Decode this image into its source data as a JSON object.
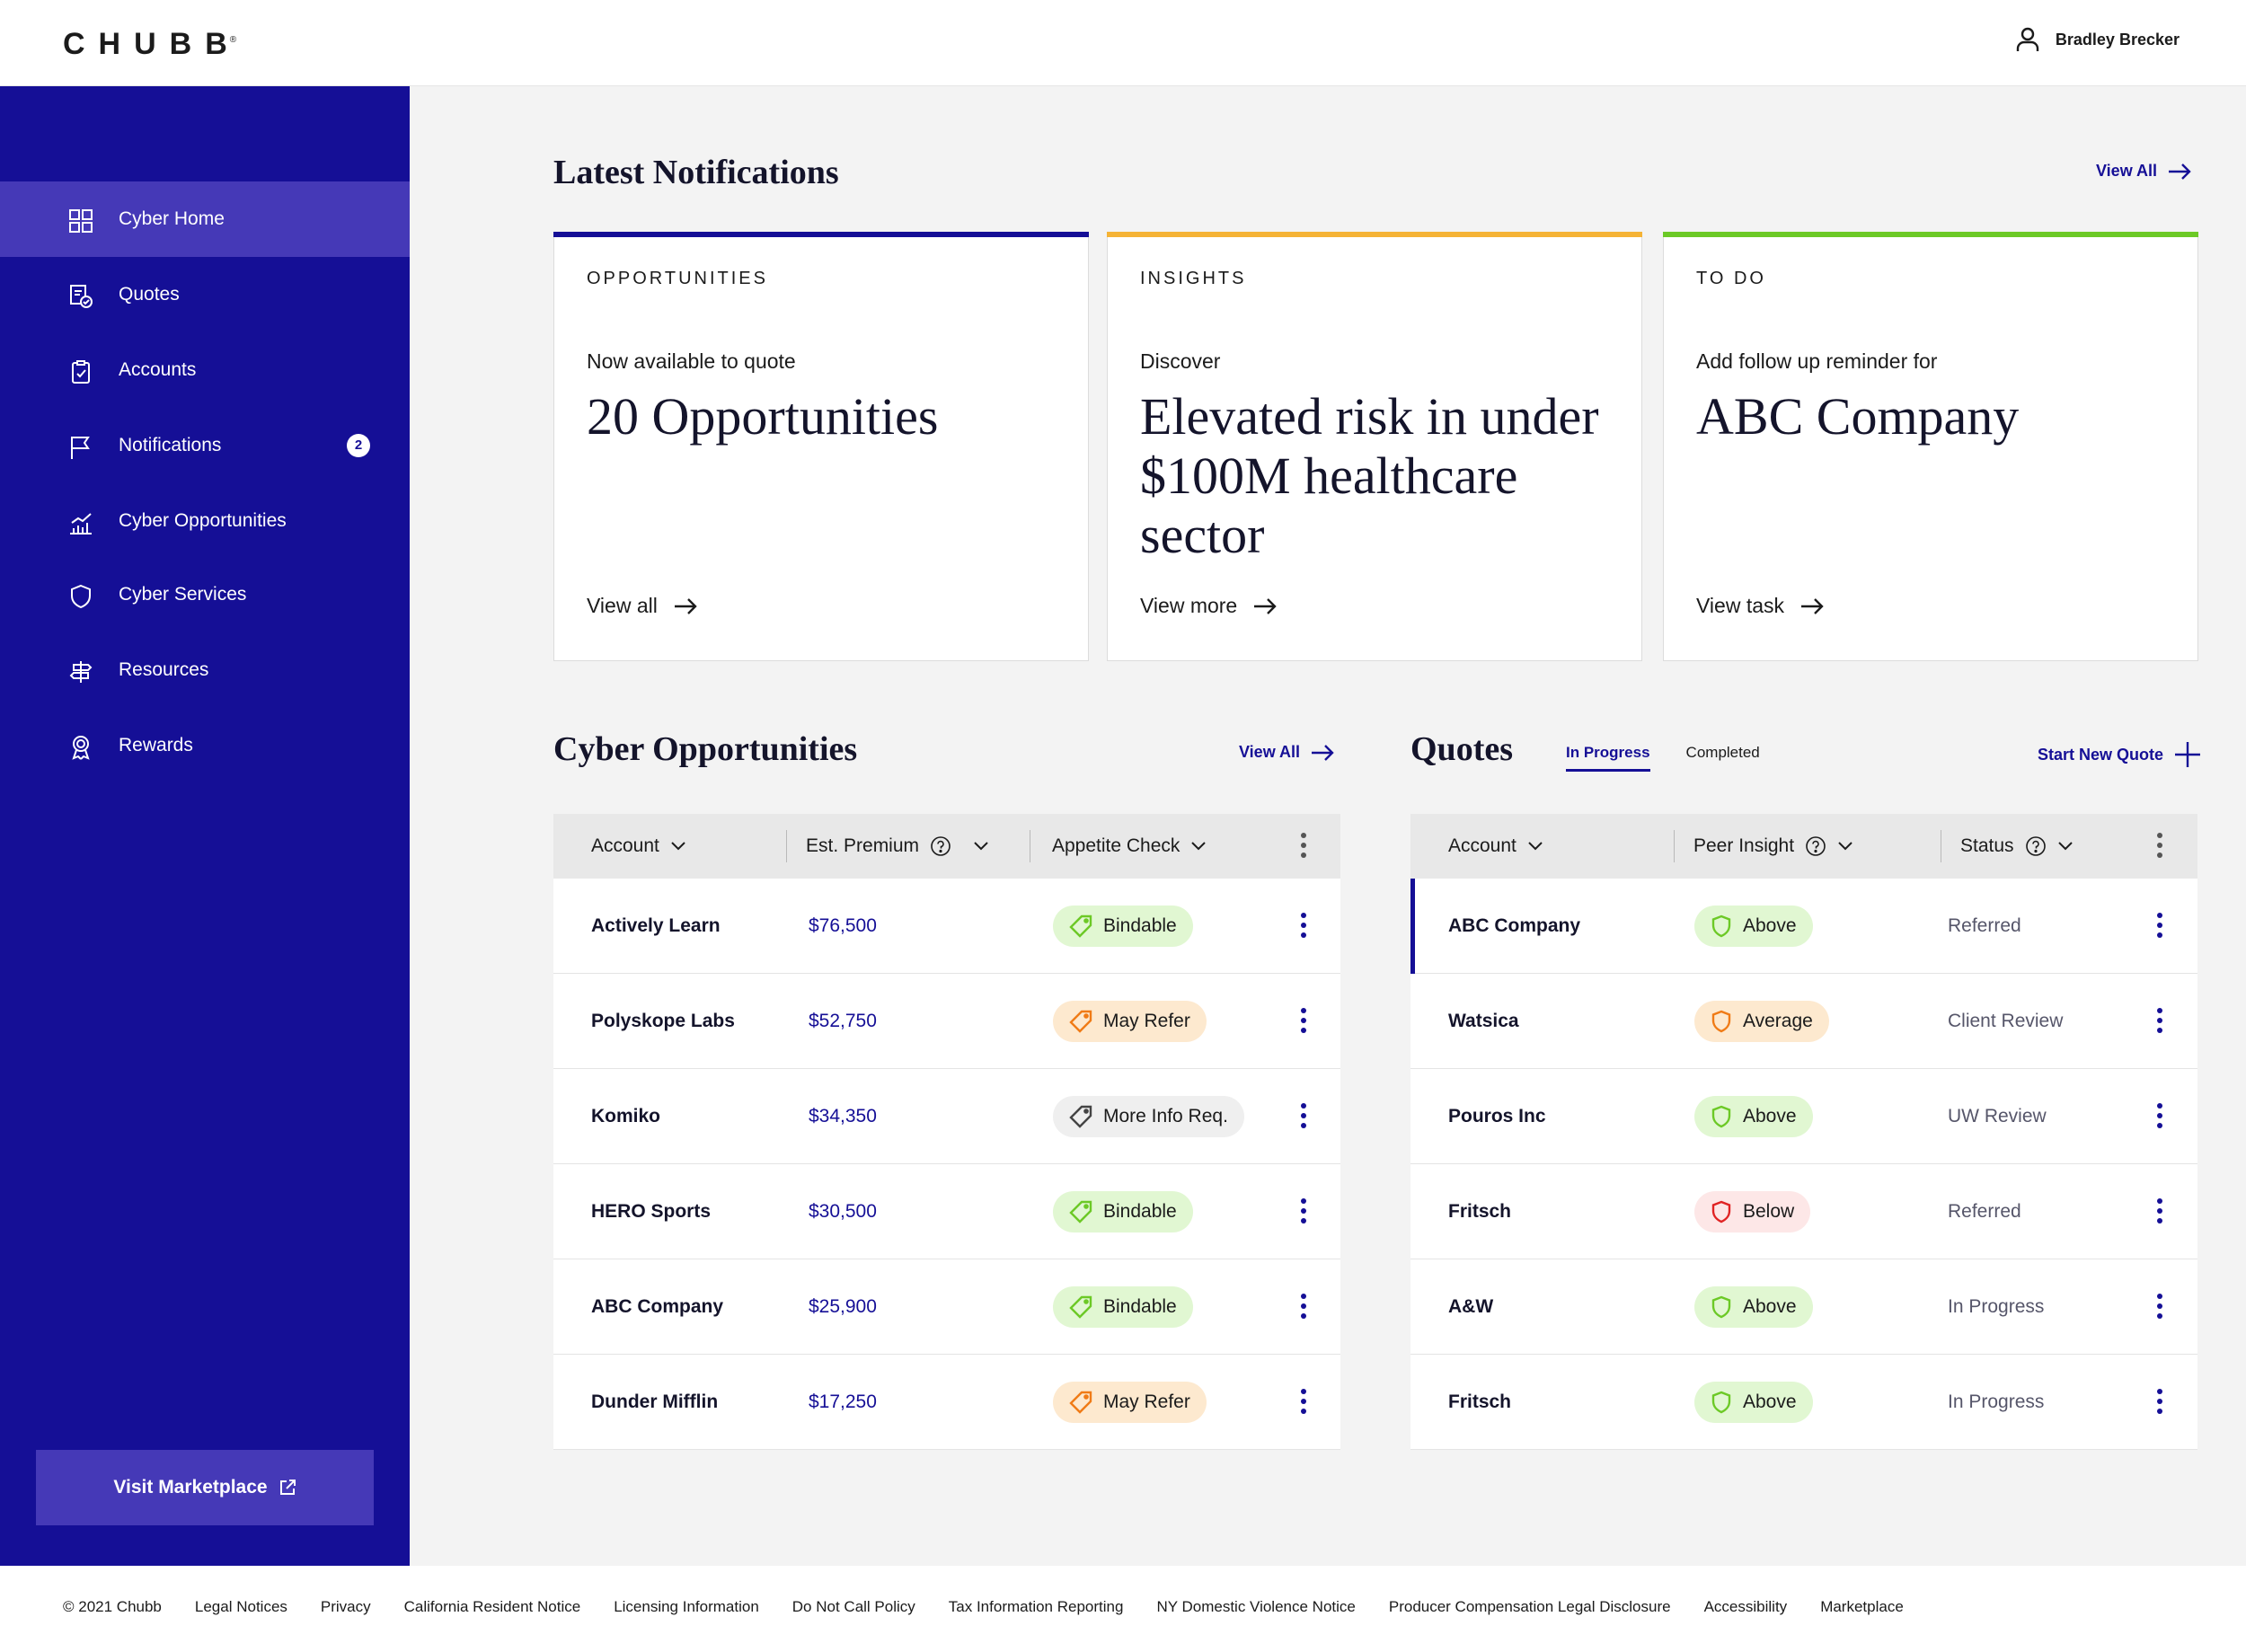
{
  "brand": {
    "logo_text": "CHUBB",
    "logo_mark": "®"
  },
  "user": {
    "name": "Bradley Brecker",
    "icon": "user-icon"
  },
  "sidebar": {
    "items": [
      {
        "label": "Cyber Home",
        "icon": "grid-icon",
        "active": true
      },
      {
        "label": "Quotes",
        "icon": "quote-icon"
      },
      {
        "label": "Accounts",
        "icon": "clipboard-icon"
      },
      {
        "label": "Notifications",
        "icon": "flag-icon",
        "badge": "2"
      },
      {
        "label": "Cyber Opportunities",
        "icon": "chart-icon"
      },
      {
        "label": "Cyber Services",
        "icon": "shield-icon"
      },
      {
        "label": "Resources",
        "icon": "signpost-icon"
      },
      {
        "label": "Rewards",
        "icon": "award-icon"
      }
    ],
    "marketplace_label": "Visit Marketplace"
  },
  "notifications": {
    "title": "Latest Notifications",
    "view_all": "View All",
    "cards": [
      {
        "eyebrow": "OPPORTUNITIES",
        "sub": "Now available to quote",
        "headline": "20 Opportunities",
        "link": "View all",
        "accent": "#150f96"
      },
      {
        "eyebrow": "INSIGHTS",
        "sub": "Discover",
        "headline": "Elevated risk in under $100M healthcare sector",
        "link": "View more",
        "accent": "#f5b335"
      },
      {
        "eyebrow": "TO DO",
        "sub": "Add follow up reminder for",
        "headline": "ABC Company",
        "link": "View task",
        "accent": "#6cc926"
      }
    ]
  },
  "opportunities": {
    "title": "Cyber Opportunities",
    "view_all": "View All",
    "columns": [
      "Account",
      "Est. Premium",
      "Appetite Check"
    ],
    "rows": [
      {
        "account": "Actively Learn",
        "premium": "$76,500",
        "check": "Bindable",
        "tone": "green"
      },
      {
        "account": "Polyskope Labs",
        "premium": "$52,750",
        "check": "May Refer",
        "tone": "orange"
      },
      {
        "account": "Komiko",
        "premium": "$34,350",
        "check": "More Info Req.",
        "tone": "grey"
      },
      {
        "account": "HERO Sports",
        "premium": "$30,500",
        "check": "Bindable",
        "tone": "green"
      },
      {
        "account": "ABC Company",
        "premium": "$25,900",
        "check": "Bindable",
        "tone": "green"
      },
      {
        "account": "Dunder Mifflin",
        "premium": "$17,250",
        "check": "May Refer",
        "tone": "orange"
      }
    ]
  },
  "quotes": {
    "title": "Quotes",
    "tabs": [
      "In Progress",
      "Completed"
    ],
    "start_new": "Start New Quote",
    "columns": [
      "Account",
      "Peer Insight",
      "Status"
    ],
    "rows": [
      {
        "account": "ABC Company",
        "insight": "Above",
        "tone": "green",
        "status": "Referred"
      },
      {
        "account": "Watsica",
        "insight": "Average",
        "tone": "orange",
        "status": "Client Review"
      },
      {
        "account": "Pouros Inc",
        "insight": "Above",
        "tone": "green",
        "status": "UW Review"
      },
      {
        "account": "Fritsch",
        "insight": "Below",
        "tone": "red",
        "status": "Referred"
      },
      {
        "account": "A&W",
        "insight": "Above",
        "tone": "green",
        "status": "In Progress"
      },
      {
        "account": "Fritsch",
        "insight": "Above",
        "tone": "green",
        "status": "In Progress"
      }
    ]
  },
  "footer": {
    "links": [
      "© 2021 Chubb",
      "Legal Notices",
      "Privacy",
      "California Resident Notice",
      "Licensing Information",
      "Do Not Call Policy",
      "Tax Information Reporting",
      "NY Domestic Violence Notice",
      "Producer Compensation Legal Disclosure",
      "Accessibility",
      "Marketplace"
    ]
  },
  "colors": {
    "primary": "#150f96",
    "active_nav": "#4539b7",
    "green": "#6cc926",
    "orange": "#f07b16",
    "red": "#e02424"
  }
}
